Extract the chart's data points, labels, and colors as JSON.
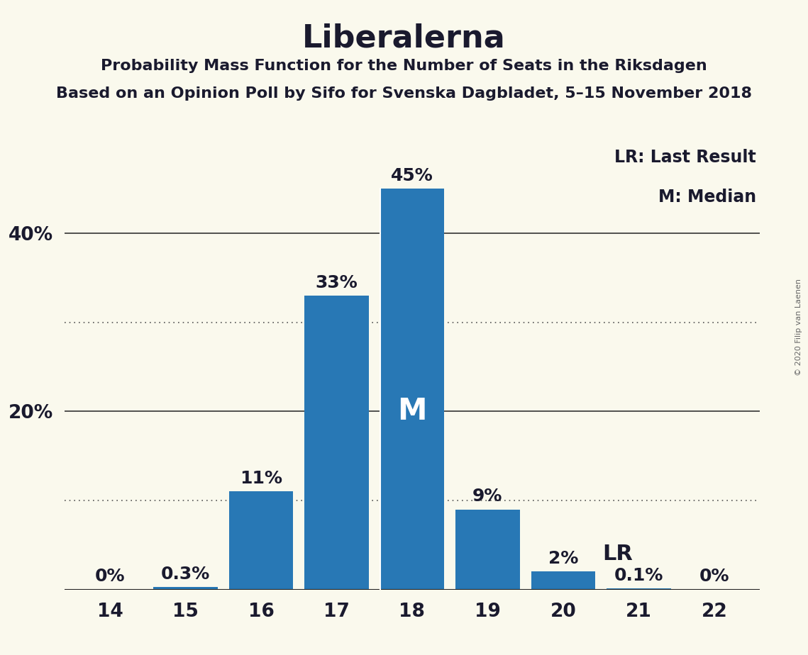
{
  "title": "Liberalerna",
  "subtitle1": "Probability Mass Function for the Number of Seats in the Riksdagen",
  "subtitle2": "Based on an Opinion Poll by Sifo for Svenska Dagbladet, 5–15 November 2018",
  "copyright": "© 2020 Filip van Laenen",
  "legend_lr": "LR: Last Result",
  "legend_m": "M: Median",
  "categories": [
    14,
    15,
    16,
    17,
    18,
    19,
    20,
    21,
    22
  ],
  "values": [
    0.0,
    0.3,
    11.0,
    33.0,
    45.0,
    9.0,
    2.0,
    0.1,
    0.0
  ],
  "bar_labels": [
    "0%",
    "0.3%",
    "11%",
    "33%",
    "45%",
    "9%",
    "2%",
    "0.1%",
    "0%"
  ],
  "bar_color": "#2878b5",
  "background_color": "#faf9ed",
  "text_color": "#1a1a2e",
  "median_seat": 18,
  "lr_seat": 20,
  "ylim": [
    0,
    50
  ],
  "solid_gridlines": [
    20,
    40
  ],
  "dotted_gridlines": [
    10,
    30
  ],
  "ylabel_ticks": [
    20,
    40
  ],
  "ylabel_labels": [
    "20%",
    "40%"
  ],
  "title_fontsize": 32,
  "subtitle_fontsize": 16,
  "label_fontsize": 18,
  "tick_fontsize": 19,
  "legend_fontsize": 17,
  "m_label_fontsize": 30,
  "lr_label_fontsize": 22
}
